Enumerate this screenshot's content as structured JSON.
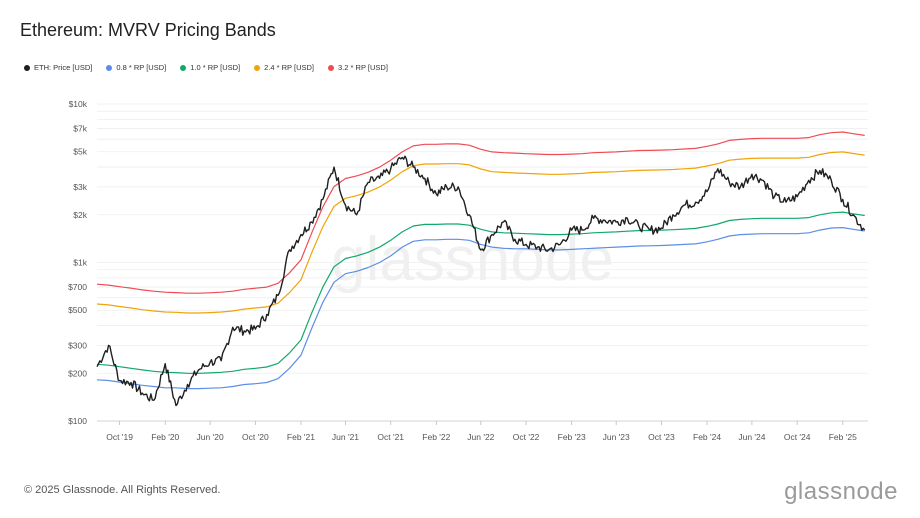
{
  "title": "Ethereum: MVRV Pricing Bands",
  "copyright": "© 2025 Glassnode. All Rights Reserved.",
  "brand": "glassnode",
  "watermark": "glassnode",
  "legend": [
    {
      "label": "ETH: Price [USD]",
      "color": "#1f1f1f"
    },
    {
      "label": "0.8 * RP [USD]",
      "color": "#5b8ee6"
    },
    {
      "label": "1.0 * RP [USD]",
      "color": "#11a86b"
    },
    {
      "label": "2.4 * RP [USD]",
      "color": "#f0a30a"
    },
    {
      "label": "3.2 * RP [USD]",
      "color": "#ee4c55"
    }
  ],
  "chart_data": {
    "type": "line",
    "title": "Ethereum: MVRV Pricing Bands",
    "yscale": "log",
    "ylim": [
      100,
      10000
    ],
    "xlim": [
      "2019-08-01",
      "2025-04-10"
    ],
    "grid": true,
    "legend_position": "top-left",
    "y_ticks": [
      {
        "value": 100,
        "label": "$100"
      },
      {
        "value": 200,
        "label": "$200"
      },
      {
        "value": 300,
        "label": "$300"
      },
      {
        "value": 500,
        "label": "$500"
      },
      {
        "value": 700,
        "label": "$700"
      },
      {
        "value": 1000,
        "label": "$1k"
      },
      {
        "value": 2000,
        "label": "$2k"
      },
      {
        "value": 3000,
        "label": "$3k"
      },
      {
        "value": 5000,
        "label": "$5k"
      },
      {
        "value": 7000,
        "label": "$7k"
      },
      {
        "value": 10000,
        "label": "$10k"
      }
    ],
    "x_ticks": [
      {
        "date": "2019-10-01",
        "label": "Oct '19"
      },
      {
        "date": "2020-02-01",
        "label": "Feb '20"
      },
      {
        "date": "2020-06-01",
        "label": "Jun '20"
      },
      {
        "date": "2020-10-01",
        "label": "Oct '20"
      },
      {
        "date": "2021-02-01",
        "label": "Feb '21"
      },
      {
        "date": "2021-06-01",
        "label": "Jun '21"
      },
      {
        "date": "2021-10-01",
        "label": "Oct '21"
      },
      {
        "date": "2022-02-01",
        "label": "Feb '22"
      },
      {
        "date": "2022-06-01",
        "label": "Jun '22"
      },
      {
        "date": "2022-10-01",
        "label": "Oct '22"
      },
      {
        "date": "2023-02-01",
        "label": "Feb '23"
      },
      {
        "date": "2023-06-01",
        "label": "Jun '23"
      },
      {
        "date": "2023-10-01",
        "label": "Oct '23"
      },
      {
        "date": "2024-02-01",
        "label": "Feb '24"
      },
      {
        "date": "2024-06-01",
        "label": "Jun '24"
      },
      {
        "date": "2024-10-01",
        "label": "Oct '24"
      },
      {
        "date": "2025-02-01",
        "label": "Feb '25"
      }
    ],
    "x": [
      "2019-08-01",
      "2019-09-01",
      "2019-10-01",
      "2019-11-01",
      "2019-12-01",
      "2020-01-01",
      "2020-02-01",
      "2020-03-01",
      "2020-04-01",
      "2020-05-01",
      "2020-06-01",
      "2020-07-01",
      "2020-08-01",
      "2020-09-01",
      "2020-10-01",
      "2020-11-01",
      "2020-12-01",
      "2021-01-01",
      "2021-02-01",
      "2021-03-01",
      "2021-04-01",
      "2021-05-01",
      "2021-06-01",
      "2021-07-01",
      "2021-08-01",
      "2021-09-01",
      "2021-10-01",
      "2021-11-01",
      "2021-12-01",
      "2022-01-01",
      "2022-02-01",
      "2022-03-01",
      "2022-04-01",
      "2022-05-01",
      "2022-06-01",
      "2022-07-01",
      "2022-08-01",
      "2022-09-01",
      "2022-10-01",
      "2022-11-01",
      "2022-12-01",
      "2023-01-01",
      "2023-02-01",
      "2023-03-01",
      "2023-04-01",
      "2023-05-01",
      "2023-06-01",
      "2023-07-01",
      "2023-08-01",
      "2023-09-01",
      "2023-10-01",
      "2023-11-01",
      "2023-12-01",
      "2024-01-01",
      "2024-02-01",
      "2024-03-01",
      "2024-04-01",
      "2024-05-01",
      "2024-06-01",
      "2024-07-01",
      "2024-08-01",
      "2024-09-01",
      "2024-10-01",
      "2024-11-01",
      "2024-12-01",
      "2025-01-01",
      "2025-02-01",
      "2025-03-01",
      "2025-04-01"
    ],
    "series": [
      {
        "name": "ETH: Price [USD]",
        "color": "#1f1f1f",
        "width": 1.4,
        "values": [
          220,
          300,
          180,
          175,
          150,
          135,
          230,
          125,
          170,
          210,
          235,
          240,
          390,
          370,
          380,
          470,
          620,
          1200,
          1500,
          1800,
          2500,
          4000,
          2300,
          2000,
          3200,
          3400,
          3900,
          4600,
          4000,
          3400,
          2700,
          3000,
          3000,
          2000,
          1200,
          1500,
          1800,
          1400,
          1300,
          1250,
          1200,
          1300,
          1600,
          1600,
          1900,
          1850,
          1800,
          1900,
          1700,
          1600,
          1650,
          2000,
          2300,
          2400,
          2800,
          3900,
          3200,
          3000,
          3600,
          3300,
          2600,
          2400,
          2600,
          3300,
          3800,
          3300,
          2500,
          2000,
          1600
        ]
      },
      {
        "name": "0.8 * RP [USD]",
        "color": "#5b8ee6",
        "width": 1.2,
        "values": [
          182,
          180,
          176,
          172,
          168,
          165,
          162,
          162,
          160,
          160,
          161,
          162,
          165,
          170,
          172,
          175,
          185,
          215,
          260,
          380,
          560,
          750,
          850,
          880,
          930,
          1000,
          1100,
          1250,
          1360,
          1390,
          1390,
          1400,
          1400,
          1380,
          1300,
          1250,
          1230,
          1220,
          1220,
          1210,
          1200,
          1200,
          1210,
          1220,
          1230,
          1240,
          1250,
          1260,
          1270,
          1275,
          1280,
          1290,
          1300,
          1310,
          1350,
          1400,
          1470,
          1500,
          1510,
          1520,
          1520,
          1520,
          1520,
          1540,
          1600,
          1650,
          1660,
          1620,
          1580
        ]
      },
      {
        "name": "1.0 * RP [USD]",
        "color": "#11a86b",
        "width": 1.2,
        "values": [
          228,
          225,
          220,
          215,
          210,
          206,
          203,
          202,
          200,
          200,
          201,
          203,
          206,
          212,
          215,
          219,
          231,
          269,
          325,
          475,
          700,
          940,
          1060,
          1100,
          1160,
          1250,
          1380,
          1560,
          1700,
          1740,
          1740,
          1750,
          1750,
          1720,
          1620,
          1560,
          1540,
          1530,
          1520,
          1510,
          1500,
          1500,
          1510,
          1520,
          1540,
          1550,
          1560,
          1575,
          1590,
          1595,
          1600,
          1610,
          1625,
          1640,
          1690,
          1750,
          1840,
          1870,
          1890,
          1900,
          1900,
          1900,
          1900,
          1920,
          2000,
          2060,
          2080,
          2030,
          1980
        ]
      },
      {
        "name": "2.4 * RP [USD]",
        "color": "#f0a30a",
        "width": 1.2,
        "values": [
          547,
          540,
          528,
          516,
          504,
          494,
          487,
          485,
          480,
          480,
          483,
          487,
          494,
          508,
          516,
          525,
          554,
          646,
          780,
          1140,
          1680,
          2260,
          2540,
          2640,
          2780,
          3000,
          3310,
          3740,
          4080,
          4180,
          4180,
          4200,
          4200,
          4130,
          3890,
          3740,
          3700,
          3670,
          3650,
          3620,
          3600,
          3600,
          3620,
          3650,
          3700,
          3720,
          3740,
          3780,
          3810,
          3830,
          3840,
          3860,
          3900,
          3940,
          4060,
          4200,
          4420,
          4490,
          4540,
          4560,
          4560,
          4560,
          4560,
          4610,
          4800,
          4940,
          4990,
          4870,
          4750
        ]
      },
      {
        "name": "3.2 * RP [USD]",
        "color": "#ee4c55",
        "width": 1.2,
        "values": [
          730,
          720,
          704,
          688,
          672,
          659,
          650,
          646,
          640,
          640,
          644,
          650,
          659,
          678,
          688,
          700,
          739,
          861,
          1040,
          1520,
          2240,
          3010,
          3390,
          3520,
          3710,
          4000,
          4420,
          4990,
          5440,
          5570,
          5570,
          5600,
          5600,
          5500,
          5180,
          4990,
          4930,
          4900,
          4860,
          4830,
          4800,
          4800,
          4830,
          4860,
          4930,
          4960,
          4990,
          5040,
          5090,
          5100,
          5120,
          5150,
          5200,
          5250,
          5410,
          5600,
          5890,
          5980,
          6050,
          6080,
          6080,
          6080,
          6080,
          6140,
          6400,
          6590,
          6660,
          6500,
          6340
        ]
      }
    ]
  }
}
